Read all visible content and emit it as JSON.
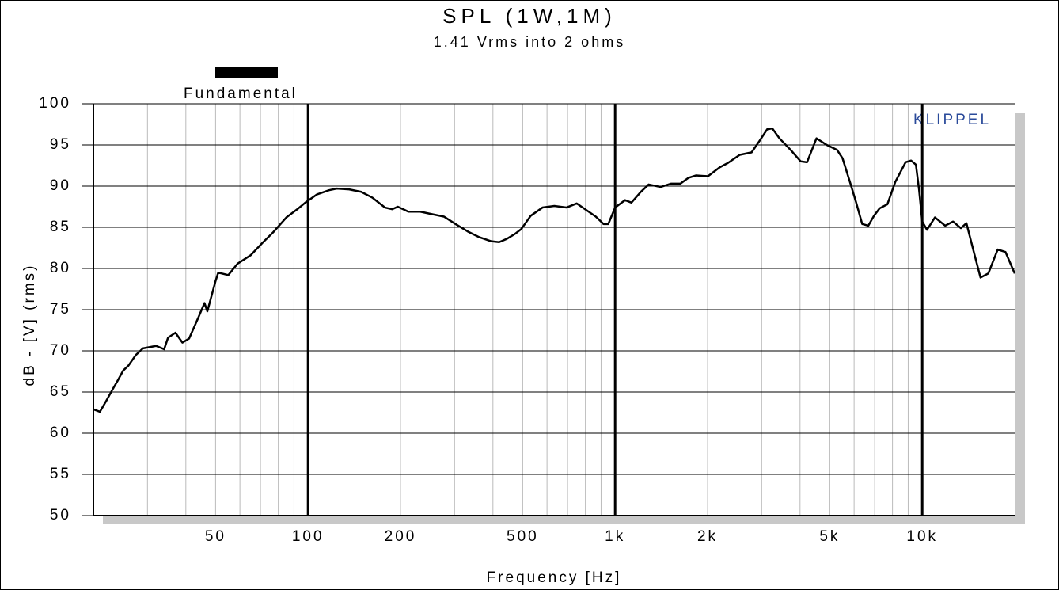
{
  "chart_data": {
    "type": "line",
    "title": "SPL (1W,1M)",
    "subtitle": "1.41 Vrms into 2 ohms",
    "xlabel": "Frequency [Hz]",
    "ylabel": "dB - [V] (rms)",
    "annotation": "KLIPPEL",
    "log_x": true,
    "grid": true,
    "legend": "top-left",
    "xlim": [
      20,
      20000
    ],
    "ylim": [
      50,
      100
    ],
    "xticks": [
      50,
      100,
      200,
      500,
      {
        "value": 1000,
        "label": "1k"
      },
      {
        "value": 2000,
        "label": "2k"
      },
      {
        "value": 5000,
        "label": "5k"
      },
      {
        "value": 10000,
        "label": "10k"
      }
    ],
    "xgrid": [
      30,
      40,
      50,
      60,
      70,
      80,
      90,
      100,
      200,
      300,
      400,
      500,
      600,
      700,
      800,
      900,
      1000,
      2000,
      3000,
      4000,
      5000,
      6000,
      7000,
      8000,
      9000,
      10000
    ],
    "yticks": [
      50,
      55,
      60,
      65,
      70,
      75,
      80,
      85,
      90,
      95,
      100
    ],
    "x": [
      20,
      21,
      22,
      23,
      24,
      25,
      26,
      27.5,
      29,
      32,
      34,
      35,
      37,
      39,
      41,
      44,
      46,
      47,
      50,
      51,
      55,
      59,
      65,
      71,
      77,
      85,
      93,
      98,
      107,
      117,
      124,
      136,
      149,
      162,
      178,
      188,
      196,
      212,
      232,
      253,
      277,
      302,
      331,
      361,
      395,
      419,
      444,
      472,
      495,
      531,
      580,
      634,
      694,
      750,
      805,
      865,
      917,
      950,
      1000,
      1077,
      1130,
      1212,
      1286,
      1406,
      1519,
      1631,
      1731,
      1836,
      2006,
      2193,
      2327,
      2546,
      2782,
      2953,
      3127,
      3250,
      3428,
      3748,
      4020,
      4216,
      4525,
      4888,
      5278,
      5499,
      5838,
      6083,
      6375,
      6676,
      6963,
      7262,
      7701,
      8168,
      8829,
      9204,
      9537,
      9770,
      10000,
      10364,
      10999,
      11878,
      12600,
      13360,
      13928,
      14770,
      15480,
      16412,
      17611,
      18667,
      20000
    ],
    "series": [
      {
        "name": "Fundamental",
        "color": "#000000",
        "values": [
          62.9,
          62.6,
          63.9,
          65.2,
          66.4,
          67.6,
          68.2,
          69.5,
          70.3,
          70.6,
          70.2,
          71.6,
          72.2,
          71.0,
          71.5,
          74.1,
          75.8,
          74.8,
          78.5,
          79.5,
          79.2,
          80.6,
          81.6,
          83.1,
          84.4,
          86.2,
          87.3,
          88.0,
          89.0,
          89.5,
          89.7,
          89.6,
          89.3,
          88.6,
          87.4,
          87.2,
          87.5,
          86.9,
          86.9,
          86.6,
          86.3,
          85.4,
          84.5,
          83.8,
          83.3,
          83.2,
          83.6,
          84.2,
          84.8,
          86.4,
          87.4,
          87.6,
          87.4,
          87.9,
          87.1,
          86.3,
          85.4,
          85.4,
          87.4,
          88.3,
          88.0,
          89.3,
          90.2,
          89.9,
          90.3,
          90.3,
          91.0,
          91.3,
          91.2,
          92.3,
          92.8,
          93.8,
          94.1,
          95.5,
          96.9,
          97.0,
          95.8,
          94.3,
          93.0,
          92.9,
          95.8,
          95.0,
          94.4,
          93.4,
          90.3,
          88.1,
          85.4,
          85.2,
          86.4,
          87.3,
          87.8,
          90.5,
          92.9,
          93.1,
          92.6,
          89.5,
          85.7,
          84.7,
          86.2,
          85.2,
          85.7,
          84.9,
          85.5,
          81.8,
          78.9,
          79.4,
          82.3,
          82.0,
          79.4
        ]
      }
    ]
  }
}
